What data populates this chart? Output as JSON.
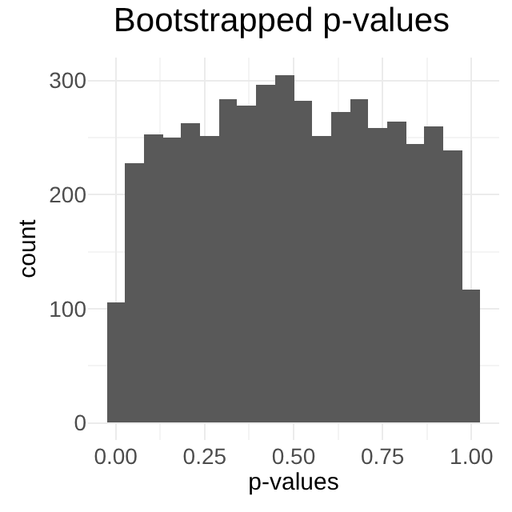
{
  "chart_data": {
    "type": "histogram",
    "title": "Bootstrapped p-values",
    "xlabel": "p-values",
    "ylabel": "count",
    "bins": [
      -0.026,
      0.026,
      0.079,
      0.132,
      0.184,
      0.237,
      0.289,
      0.342,
      0.395,
      0.447,
      0.5,
      0.553,
      0.605,
      0.658,
      0.711,
      0.763,
      0.816,
      0.868,
      0.921,
      0.974,
      1.026
    ],
    "values": [
      106,
      228,
      253,
      250,
      262,
      252,
      284,
      278,
      296,
      305,
      282,
      252,
      273,
      284,
      258,
      264,
      245,
      260,
      239,
      117
    ],
    "color": "#595959",
    "xlim": [
      -0.078,
      1.078
    ],
    "xticks": [
      {
        "value": 0,
        "label": "0.00"
      },
      0.25,
      {
        "value": 0.5,
        "label": "0.50"
      },
      0.75,
      {
        "value": 1,
        "label": "1.00"
      }
    ],
    "ylim": [
      -15,
      320
    ],
    "yticks": [
      0,
      100,
      200,
      300
    ],
    "grid": true
  }
}
